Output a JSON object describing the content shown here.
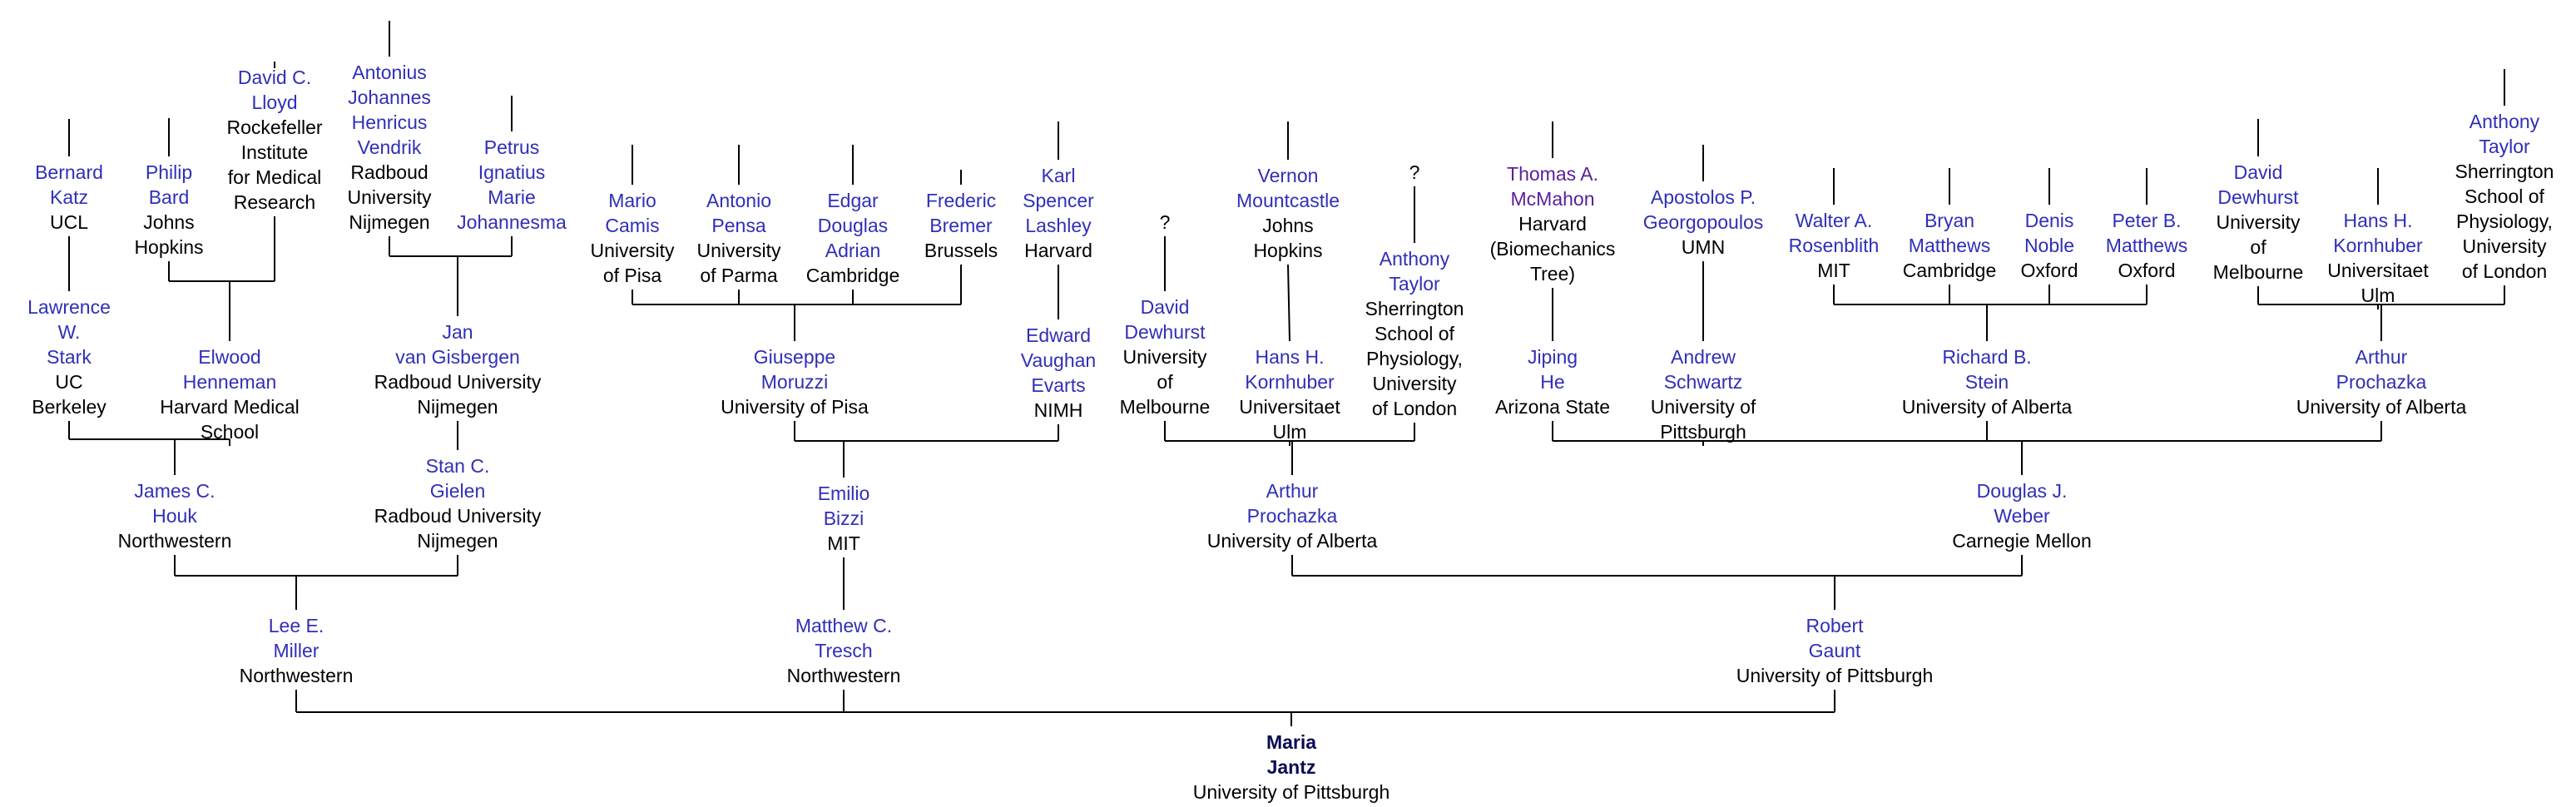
{
  "title": "",
  "colors": {
    "name": "#2f2fb8",
    "visited": "#5a1f9a",
    "root": "#0a0a55",
    "text": "#000000",
    "line": "#000000"
  },
  "nodes": {
    "bernard_katz": {
      "name": [
        "Bernard",
        "Katz"
      ],
      "inst": [
        "UCL"
      ]
    },
    "philip_bard": {
      "name": [
        "Philip",
        "Bard"
      ],
      "inst": [
        "Johns",
        "Hopkins"
      ]
    },
    "david_lloyd": {
      "name": [
        "David C.",
        "Lloyd"
      ],
      "inst": [
        "Rockefeller",
        "Institute",
        "for Medical",
        "Research"
      ]
    },
    "vendrik": {
      "name": [
        "Antonius",
        "Johannes",
        "Henricus",
        "Vendrik"
      ],
      "inst": [
        "Radboud",
        "University",
        "Nijmegen"
      ]
    },
    "johannesma": {
      "name": [
        "Petrus",
        "Ignatius",
        "Marie",
        "Johannesma"
      ],
      "inst": []
    },
    "camis": {
      "name": [
        "Mario",
        "Camis"
      ],
      "inst": [
        "University",
        "of Pisa"
      ]
    },
    "pensa": {
      "name": [
        "Antonio",
        "Pensa"
      ],
      "inst": [
        "University",
        "of Parma"
      ]
    },
    "adrian": {
      "name": [
        "Edgar",
        "Douglas",
        "Adrian"
      ],
      "inst": [
        "Cambridge"
      ]
    },
    "bremer": {
      "name": [
        "Frederic",
        "Bremer"
      ],
      "inst": [
        "Brussels"
      ]
    },
    "lashley": {
      "name": [
        "Karl",
        "Spencer",
        "Lashley"
      ],
      "inst": [
        "Harvard"
      ]
    },
    "mountcastle": {
      "name": [
        "Vernon",
        "Mountcastle"
      ],
      "inst": [
        "Johns",
        "Hopkins"
      ]
    },
    "mcmahon": {
      "name": [
        "Thomas A.",
        "McMahon"
      ],
      "inst": [
        "Harvard",
        "(Biomechanics",
        "Tree)"
      ]
    },
    "georgopoulos": {
      "name": [
        "Apostolos P.",
        "Georgopoulos"
      ],
      "inst": [
        "UMN"
      ]
    },
    "rosenblith": {
      "name": [
        "Walter A.",
        "Rosenblith"
      ],
      "inst": [
        "MIT"
      ]
    },
    "bmatthews": {
      "name": [
        "Bryan",
        "Matthews"
      ],
      "inst": [
        "Cambridge"
      ]
    },
    "noble": {
      "name": [
        "Denis",
        "Noble"
      ],
      "inst": [
        "Oxford"
      ]
    },
    "pmatthews": {
      "name": [
        "Peter B.",
        "Matthews"
      ],
      "inst": [
        "Oxford"
      ]
    },
    "dewhurst_top": {
      "name": [
        "David",
        "Dewhurst"
      ],
      "inst": [
        "University",
        "of",
        "Melbourne"
      ]
    },
    "kornhuber_top": {
      "name": [
        "Hans H.",
        "Kornhuber"
      ],
      "inst": [
        "Universitaet",
        "Ulm"
      ]
    },
    "taylor_top": {
      "name": [
        "Anthony",
        "Taylor"
      ],
      "inst": [
        "Sherrington",
        "School of",
        "Physiology,",
        "University",
        "of London"
      ]
    },
    "stark": {
      "name": [
        "Lawrence",
        "W.",
        "Stark"
      ],
      "inst": [
        "UC",
        "Berkeley"
      ]
    },
    "henneman": {
      "name": [
        "Elwood",
        "Henneman"
      ],
      "inst": [
        "Harvard Medical",
        "School"
      ]
    },
    "gisbergen": {
      "name": [
        "Jan",
        "van Gisbergen"
      ],
      "inst": [
        "Radboud University",
        "Nijmegen"
      ]
    },
    "moruzzi": {
      "name": [
        "Giuseppe",
        "Moruzzi"
      ],
      "inst": [
        "University of Pisa"
      ]
    },
    "evarts": {
      "name": [
        "Edward",
        "Vaughan",
        "Evarts"
      ],
      "inst": [
        "NIMH"
      ]
    },
    "dewhurst_mid": {
      "name": [
        "David",
        "Dewhurst"
      ],
      "inst": [
        "University",
        "of",
        "Melbourne"
      ]
    },
    "kornhuber_mid": {
      "name": [
        "Hans H.",
        "Kornhuber"
      ],
      "inst": [
        "Universitaet",
        "Ulm"
      ]
    },
    "taylor_mid": {
      "name": [
        "Anthony",
        "Taylor"
      ],
      "inst": [
        "Sherrington",
        "School of",
        "Physiology,",
        "University",
        "of London"
      ]
    },
    "he": {
      "name": [
        "Jiping",
        "He"
      ],
      "inst": [
        "Arizona State"
      ]
    },
    "schwartz": {
      "name": [
        "Andrew",
        "Schwartz"
      ],
      "inst": [
        "University of",
        "Pittsburgh"
      ]
    },
    "stein": {
      "name": [
        "Richard B.",
        "Stein"
      ],
      "inst": [
        "University of Alberta"
      ]
    },
    "prochazka_top": {
      "name": [
        "Arthur",
        "Prochazka"
      ],
      "inst": [
        "University of Alberta"
      ]
    },
    "houk": {
      "name": [
        "James C.",
        "Houk"
      ],
      "inst": [
        "Northwestern"
      ]
    },
    "gielen": {
      "name": [
        "Stan C.",
        "Gielen"
      ],
      "inst": [
        "Radboud University",
        "Nijmegen"
      ]
    },
    "bizzi": {
      "name": [
        "Emilio",
        "Bizzi"
      ],
      "inst": [
        "MIT"
      ]
    },
    "prochazka_mid": {
      "name": [
        "Arthur",
        "Prochazka"
      ],
      "inst": [
        "University of Alberta"
      ]
    },
    "weber": {
      "name": [
        "Douglas J.",
        "Weber"
      ],
      "inst": [
        "Carnegie Mellon"
      ]
    },
    "miller": {
      "name": [
        "Lee E.",
        "Miller"
      ],
      "inst": [
        "Northwestern"
      ]
    },
    "tresch": {
      "name": [
        "Matthew C.",
        "Tresch"
      ],
      "inst": [
        "Northwestern"
      ]
    },
    "gaunt": {
      "name": [
        "Robert",
        "Gaunt"
      ],
      "inst": [
        "University of Pittsburgh"
      ]
    },
    "jantz": {
      "name": [
        "Maria",
        "Jantz"
      ],
      "inst": [
        "University of Pittsburgh"
      ]
    }
  },
  "unknown_mark": "?"
}
